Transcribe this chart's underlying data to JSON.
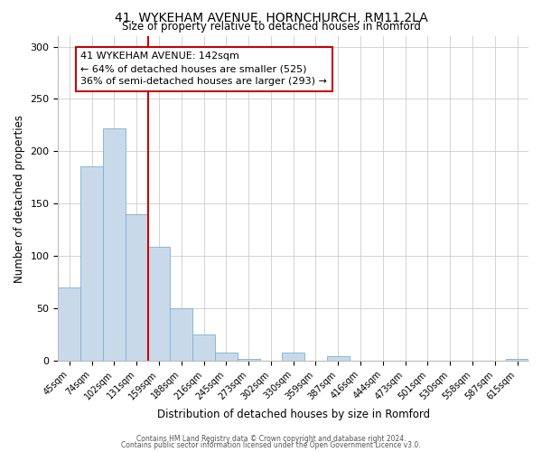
{
  "title": "41, WYKEHAM AVENUE, HORNCHURCH, RM11 2LA",
  "subtitle": "Size of property relative to detached houses in Romford",
  "xlabel": "Distribution of detached houses by size in Romford",
  "ylabel": "Number of detached properties",
  "bar_color": "#c8daea",
  "bar_edge_color": "#7bafd4",
  "categories": [
    "45sqm",
    "74sqm",
    "102sqm",
    "131sqm",
    "159sqm",
    "188sqm",
    "216sqm",
    "245sqm",
    "273sqm",
    "302sqm",
    "330sqm",
    "359sqm",
    "387sqm",
    "416sqm",
    "444sqm",
    "473sqm",
    "501sqm",
    "530sqm",
    "558sqm",
    "587sqm",
    "615sqm"
  ],
  "values": [
    70,
    186,
    222,
    140,
    109,
    50,
    25,
    8,
    2,
    0,
    8,
    0,
    4,
    0,
    0,
    0,
    0,
    0,
    0,
    0,
    2
  ],
  "vline_x_index": 3,
  "vline_color": "#cc0000",
  "annotation_line1": "41 WYKEHAM AVENUE: 142sqm",
  "annotation_line2": "← 64% of detached houses are smaller (525)",
  "annotation_line3": "36% of semi-detached houses are larger (293) →",
  "annotation_box_color": "#ffffff",
  "annotation_box_edge": "#cc0000",
  "ylim": [
    0,
    310
  ],
  "yticks": [
    0,
    50,
    100,
    150,
    200,
    250,
    300
  ],
  "footer_line1": "Contains HM Land Registry data © Crown copyright and database right 2024.",
  "footer_line2": "Contains public sector information licensed under the Open Government Licence v3.0.",
  "background_color": "#ffffff",
  "grid_color": "#cccccc"
}
